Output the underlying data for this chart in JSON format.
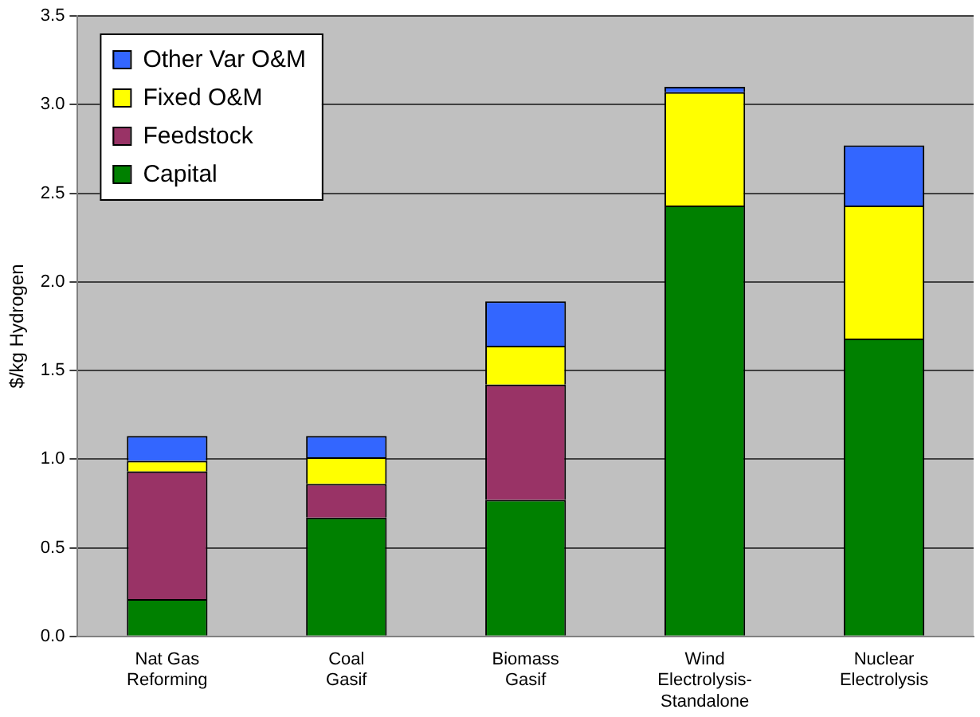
{
  "chart_data": {
    "type": "bar",
    "stacked": true,
    "ylabel": "$/kg Hydrogen",
    "categories": [
      "Nat Gas\nReforming",
      "Coal\nGasif",
      "Biomass\nGasif",
      "Wind\nElectrolysis-\nStandalone",
      "Nuclear\nElectrolysis"
    ],
    "series": [
      {
        "name": "Capital",
        "color": "#008000",
        "values": [
          0.21,
          0.67,
          0.77,
          2.43,
          1.68
        ]
      },
      {
        "name": "Feedstock",
        "color": "#993366",
        "values": [
          0.72,
          0.19,
          0.65,
          0,
          0
        ]
      },
      {
        "name": "Fixed O&M",
        "color": "#ffff00",
        "values": [
          0.06,
          0.15,
          0.22,
          0.64,
          0.75
        ]
      },
      {
        "name": "Other Var O&M",
        "color": "#3366ff",
        "values": [
          0.14,
          0.12,
          0.25,
          0.03,
          0.34
        ]
      }
    ],
    "ylim": [
      0,
      3.5
    ],
    "yticks": [
      {
        "value": 0,
        "label": "0.0"
      },
      0.5,
      {
        "value": 1,
        "label": "1.0"
      },
      1.5,
      {
        "value": 2,
        "label": "2.0"
      },
      2.5,
      {
        "value": 3,
        "label": "3.0"
      },
      3.5
    ],
    "grid": "y",
    "legend": "top left"
  }
}
